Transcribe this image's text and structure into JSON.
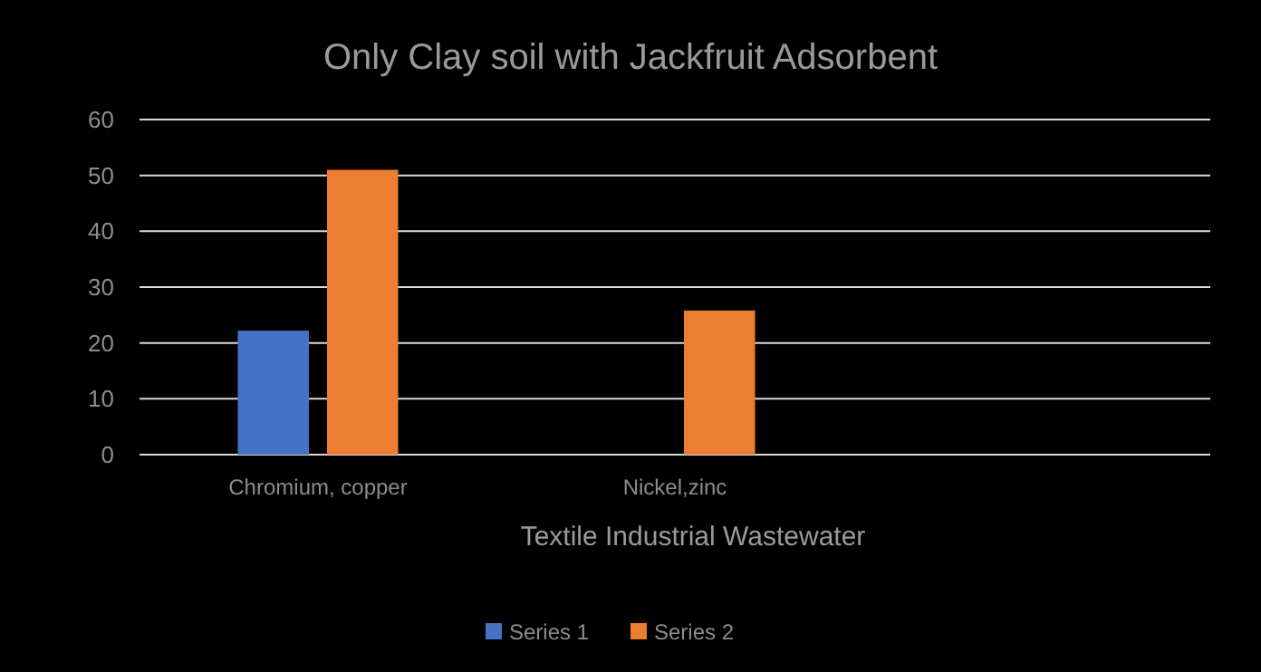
{
  "chart_data": {
    "type": "bar",
    "title": "Only Clay soil with Jackfruit  Adsorbent",
    "xlabel": "Textile Industrial Wastewater",
    "categories": [
      "Chromium, copper",
      "Nickel,zinc",
      null
    ],
    "series": [
      {
        "name": "Series 1",
        "color": "#4472c4",
        "values": [
          22.2,
          null,
          null
        ]
      },
      {
        "name": "Series 2",
        "color": "#ed7d31",
        "values": [
          51,
          25.8,
          null
        ]
      }
    ],
    "ylim": [
      0,
      60
    ],
    "yticks": [
      0,
      10,
      20,
      30,
      40,
      50,
      60
    ],
    "grid": "y",
    "legend": "bottom"
  }
}
